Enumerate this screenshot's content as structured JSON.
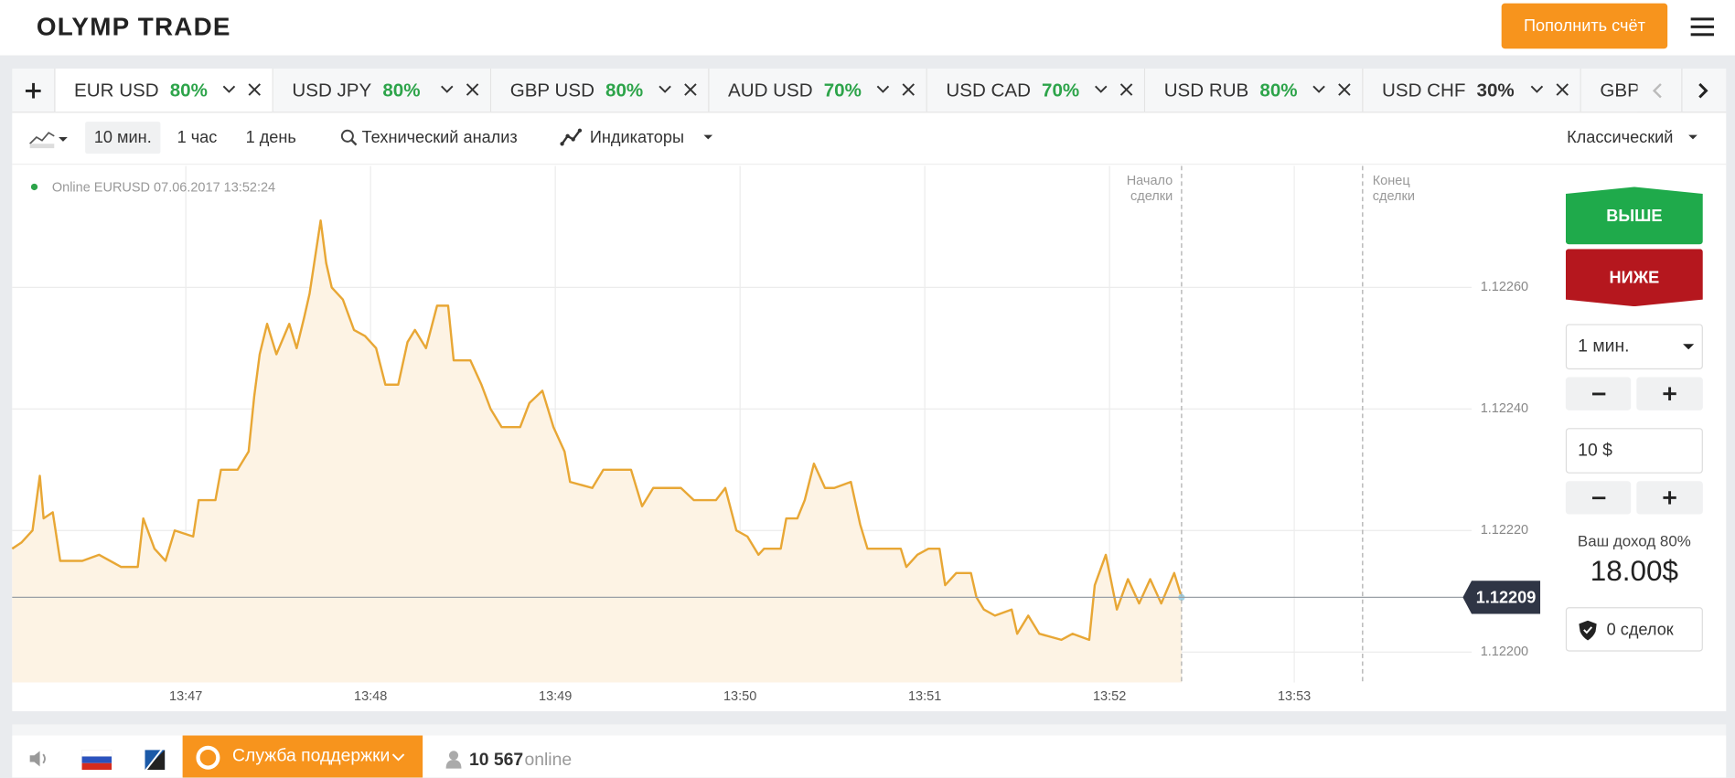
{
  "header": {
    "logo": "OLYMP TRADE",
    "deposit_button": "Пополнить счёт"
  },
  "tabs": [
    {
      "name": "EUR USD",
      "payout": "80%",
      "color": "#2da44a"
    },
    {
      "name": "USD JPY",
      "payout": "80%",
      "color": "#2da44a"
    },
    {
      "name": "GBP USD",
      "payout": "80%",
      "color": "#2da44a"
    },
    {
      "name": "AUD USD",
      "payout": "70%",
      "color": "#2da44a"
    },
    {
      "name": "USD CAD",
      "payout": "70%",
      "color": "#2da44a"
    },
    {
      "name": "USD RUB",
      "payout": "80%",
      "color": "#2da44a"
    },
    {
      "name": "USD CHF",
      "payout": "30%",
      "color": "#333333"
    },
    {
      "name": "GBP"
    }
  ],
  "toolbar": {
    "timeframes": [
      "10 мин.",
      "1 час",
      "1 день"
    ],
    "analysis": "Технический анализ",
    "indicators": "Индикаторы",
    "chart_style": "Классический"
  },
  "chart": {
    "type": "line",
    "status": "Online EURUSD 07.06.2017 13:52:24",
    "color": "#e8a735",
    "area_color": "#fdf3e4",
    "grid": true,
    "x": [
      826.06,
      826.11,
      826.17,
      826.21,
      826.23,
      826.28,
      826.32,
      826.44,
      826.53,
      826.65,
      826.74,
      826.77,
      826.83,
      826.89,
      826.94,
      827.04,
      827.07,
      827.16,
      827.19,
      827.28,
      827.34,
      827.37,
      827.4,
      827.44,
      827.49,
      827.56,
      827.6,
      827.64,
      827.67,
      827.7,
      827.73,
      827.76,
      827.79,
      827.85,
      827.91,
      827.97,
      828.03,
      828.08,
      828.15,
      828.2,
      828.24,
      828.3,
      828.36,
      828.42,
      828.45,
      828.54,
      828.6,
      828.65,
      828.71,
      828.81,
      828.86,
      828.93,
      828.99,
      829.05,
      829.08,
      829.2,
      829.26,
      829.41,
      829.47,
      829.53,
      829.68,
      829.75,
      829.87,
      829.92,
      829.98,
      830.04,
      830.1,
      830.13,
      830.22,
      830.25,
      830.31,
      830.35,
      830.4,
      830.46,
      830.51,
      830.6,
      830.65,
      830.69,
      830.78,
      830.87,
      830.9,
      830.96,
      831.02,
      831.08,
      831.11,
      831.17,
      831.25,
      831.28,
      831.32,
      831.38,
      831.47,
      831.5,
      831.56,
      831.62,
      831.74,
      831.8,
      831.89,
      831.92,
      831.98,
      832.04,
      832.1,
      832.16,
      832.22,
      832.28,
      832.35,
      832.39
    ],
    "values": [
      1.12217,
      1.12218,
      1.1222,
      1.12229,
      1.12222,
      1.12223,
      1.12215,
      1.12215,
      1.12216,
      1.12214,
      1.12214,
      1.12222,
      1.12217,
      1.12215,
      1.1222,
      1.12219,
      1.12225,
      1.12225,
      1.1223,
      1.1223,
      1.12233,
      1.12242,
      1.12249,
      1.12254,
      1.12249,
      1.12254,
      1.1225,
      1.12255,
      1.12259,
      1.12265,
      1.12271,
      1.12264,
      1.1226,
      1.12258,
      1.12253,
      1.12252,
      1.1225,
      1.12244,
      1.12244,
      1.12251,
      1.12253,
      1.1225,
      1.12257,
      1.12257,
      1.12248,
      1.12248,
      1.12244,
      1.1224,
      1.12237,
      1.12237,
      1.12241,
      1.12243,
      1.12237,
      1.12233,
      1.12228,
      1.12227,
      1.1223,
      1.1223,
      1.12224,
      1.12227,
      1.12227,
      1.12225,
      1.12225,
      1.12227,
      1.1222,
      1.12219,
      1.12216,
      1.12217,
      1.12217,
      1.12222,
      1.12222,
      1.12225,
      1.12231,
      1.12227,
      1.12227,
      1.12228,
      1.12221,
      1.12217,
      1.12217,
      1.12217,
      1.12214,
      1.12216,
      1.12217,
      1.12217,
      1.12211,
      1.12213,
      1.12213,
      1.12209,
      1.12207,
      1.12206,
      1.12207,
      1.12203,
      1.12206,
      1.12203,
      1.12202,
      1.12203,
      1.12202,
      1.12211,
      1.12216,
      1.12207,
      1.12212,
      1.12208,
      1.12212,
      1.12208,
      1.12213,
      1.12209
    ],
    "xlim": [
      826.06,
      833.99
    ],
    "ylim": [
      1.12195,
      1.1228
    ],
    "xticks": [
      {
        "value": 827,
        "label": "13:47"
      },
      {
        "value": 828,
        "label": "13:48"
      },
      {
        "value": 829,
        "label": "13:49"
      },
      {
        "value": 830,
        "label": "13:50"
      },
      {
        "value": 831,
        "label": "13:51"
      },
      {
        "value": 832,
        "label": "13:52"
      },
      {
        "value": 833,
        "label": "13:53"
      }
    ],
    "yticks": [
      {
        "value": 1.122,
        "label": "1.12200"
      },
      {
        "value": 1.1222,
        "label": "1.12220"
      },
      {
        "value": 1.1224,
        "label": "1.12240"
      },
      {
        "value": 1.1226,
        "label": "1.12260"
      }
    ],
    "current_price": 1.12209,
    "markers": [
      {
        "label": [
          "Начало",
          "сделки"
        ],
        "x": 832.39,
        "align": "end"
      },
      {
        "label": [
          "Конец",
          "сделки"
        ],
        "x": 833.37,
        "align": "start"
      }
    ]
  },
  "trade_panel": {
    "up": "ВЫШЕ",
    "down": "НИЖЕ",
    "duration": "1 мин.",
    "amount": "10 $",
    "income": "Ваш доход 80%",
    "payout": "18.00$",
    "deals": "0 сделок"
  },
  "footer": {
    "support": "Служба поддержки",
    "online_count": "10 567",
    "online_label": "online"
  }
}
